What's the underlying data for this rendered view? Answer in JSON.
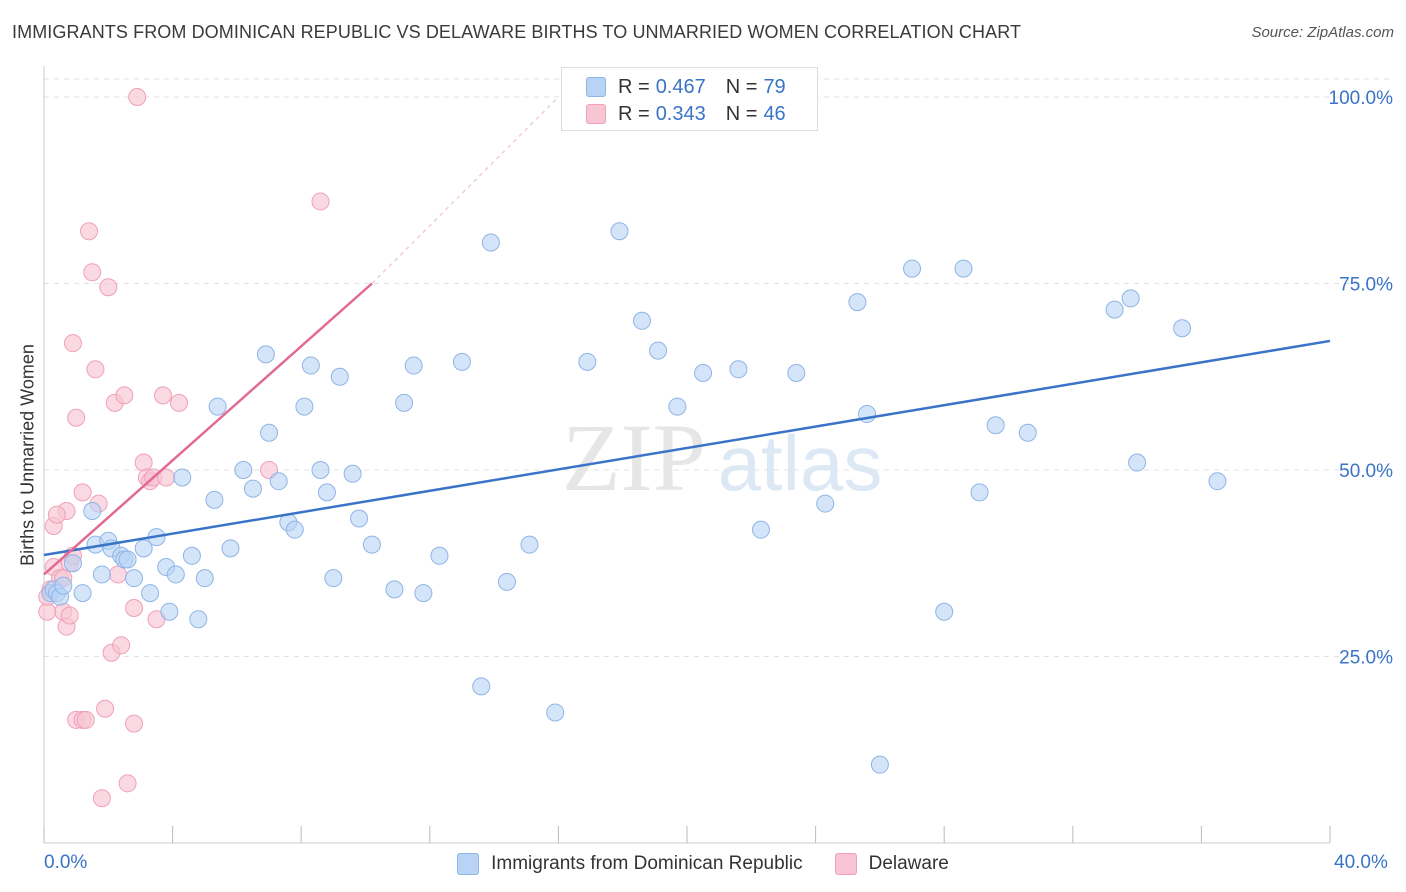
{
  "title": "IMMIGRANTS FROM DOMINICAN REPUBLIC VS DELAWARE BIRTHS TO UNMARRIED WOMEN CORRELATION CHART",
  "source": "Source: ZipAtlas.com",
  "watermark": {
    "zip": "ZIP",
    "atlas": "atlas"
  },
  "legend": {
    "series1": {
      "r_label": "R = ",
      "r_value": "0.467",
      "n_label": "N = ",
      "n_value": "79"
    },
    "series2": {
      "r_label": "R = ",
      "r_value": "0.343",
      "n_label": "N = ",
      "n_value": "46"
    }
  },
  "bottom_legend": {
    "series1": "Immigrants from Dominican Republic",
    "series2": "Delaware"
  },
  "colors": {
    "blue_fill": "#b9d3f5",
    "blue_stroke": "#8fb4e6",
    "blue_line": "#3a74c7",
    "pink_fill": "#f8c5d4",
    "pink_stroke": "#f0a0b8",
    "pink_line": "#e26a92",
    "axis_text": "#3a74c7",
    "grid": "#e2e2e2"
  },
  "chart_data": {
    "type": "scatter",
    "title": "IMMIGRANTS FROM DOMINICAN REPUBLIC VS DELAWARE BIRTHS TO UNMARRIED WOMEN CORRELATION CHART",
    "xlabel": "",
    "ylabel": "Births to Unmarried Women",
    "xlim": [
      0,
      40
    ],
    "ylim": [
      0,
      105
    ],
    "x_tick_labels": {
      "min": "0.0%",
      "max": "40.0%"
    },
    "y_ticks": [
      25,
      50,
      75,
      100
    ],
    "y_tick_labels": [
      "25.0%",
      "50.0%",
      "75.0%",
      "100.0%"
    ],
    "series": [
      {
        "name": "Immigrants from Dominican Republic",
        "color": "blue",
        "trendline": {
          "x": [
            0,
            40
          ],
          "y": [
            38.6,
            67.3
          ]
        },
        "points": [
          [
            0.2,
            33.5
          ],
          [
            0.3,
            34.0
          ],
          [
            0.4,
            33.5
          ],
          [
            0.5,
            33.0
          ],
          [
            0.6,
            34.5
          ],
          [
            0.9,
            37.5
          ],
          [
            1.2,
            33.5
          ],
          [
            1.5,
            44.5
          ],
          [
            1.6,
            40.0
          ],
          [
            1.8,
            36.0
          ],
          [
            2.0,
            40.5
          ],
          [
            2.1,
            39.5
          ],
          [
            2.4,
            38.5
          ],
          [
            2.5,
            38.0
          ],
          [
            2.6,
            38.0
          ],
          [
            2.8,
            35.5
          ],
          [
            3.1,
            39.5
          ],
          [
            3.3,
            33.5
          ],
          [
            3.5,
            41.0
          ],
          [
            3.8,
            37.0
          ],
          [
            3.9,
            31.0
          ],
          [
            4.1,
            36.0
          ],
          [
            4.3,
            49.0
          ],
          [
            4.6,
            38.5
          ],
          [
            4.8,
            30.0
          ],
          [
            5.0,
            35.5
          ],
          [
            5.3,
            46.0
          ],
          [
            5.4,
            58.5
          ],
          [
            5.8,
            39.5
          ],
          [
            6.2,
            50.0
          ],
          [
            6.5,
            47.5
          ],
          [
            7.0,
            55.0
          ],
          [
            6.9,
            65.5
          ],
          [
            7.3,
            48.5
          ],
          [
            7.6,
            43.0
          ],
          [
            7.8,
            42.0
          ],
          [
            8.1,
            58.5
          ],
          [
            8.3,
            64.0
          ],
          [
            8.6,
            50.0
          ],
          [
            8.8,
            47.0
          ],
          [
            9.0,
            35.5
          ],
          [
            9.2,
            62.5
          ],
          [
            9.6,
            49.5
          ],
          [
            9.8,
            43.5
          ],
          [
            10.2,
            40.0
          ],
          [
            10.9,
            34.0
          ],
          [
            11.2,
            59.0
          ],
          [
            11.5,
            64.0
          ],
          [
            11.8,
            33.5
          ],
          [
            12.3,
            38.5
          ],
          [
            13.0,
            64.5
          ],
          [
            13.6,
            21.0
          ],
          [
            13.9,
            80.5
          ],
          [
            14.4,
            35.0
          ],
          [
            15.1,
            40.0
          ],
          [
            15.9,
            17.5
          ],
          [
            16.9,
            64.5
          ],
          [
            17.9,
            82.0
          ],
          [
            18.6,
            70.0
          ],
          [
            19.1,
            66.0
          ],
          [
            19.7,
            58.5
          ],
          [
            20.5,
            63.0
          ],
          [
            21.6,
            63.5
          ],
          [
            22.3,
            42.0
          ],
          [
            23.4,
            63.0
          ],
          [
            24.3,
            45.5
          ],
          [
            25.3,
            72.5
          ],
          [
            25.6,
            57.5
          ],
          [
            26.0,
            10.5
          ],
          [
            27.0,
            77.0
          ],
          [
            28.0,
            31.0
          ],
          [
            28.6,
            77.0
          ],
          [
            29.1,
            47.0
          ],
          [
            29.6,
            56.0
          ],
          [
            30.6,
            55.0
          ],
          [
            33.3,
            71.5
          ],
          [
            33.8,
            73.0
          ],
          [
            34.0,
            51.0
          ],
          [
            35.4,
            69.0
          ],
          [
            36.5,
            48.5
          ]
        ]
      },
      {
        "name": "Delaware",
        "color": "pink",
        "trendline": {
          "x": [
            0,
            10.2
          ],
          "y": [
            36.0,
            75.0
          ]
        },
        "trendline_dashed_extension": {
          "x": [
            10.2,
            16.0
          ],
          "y": [
            75.0,
            100.0
          ]
        },
        "points": [
          [
            0.1,
            31.0
          ],
          [
            0.1,
            33.0
          ],
          [
            0.2,
            34.0
          ],
          [
            0.3,
            37.0
          ],
          [
            0.3,
            42.5
          ],
          [
            0.5,
            35.5
          ],
          [
            0.6,
            31.0
          ],
          [
            0.7,
            29.0
          ],
          [
            0.7,
            44.5
          ],
          [
            0.8,
            37.5
          ],
          [
            0.8,
            30.5
          ],
          [
            0.9,
            38.5
          ],
          [
            0.9,
            67.0
          ],
          [
            1.0,
            57.0
          ],
          [
            1.0,
            16.5
          ],
          [
            1.2,
            16.5
          ],
          [
            1.2,
            47.0
          ],
          [
            1.3,
            16.5
          ],
          [
            1.4,
            82.0
          ],
          [
            1.5,
            76.5
          ],
          [
            1.6,
            63.5
          ],
          [
            1.7,
            45.5
          ],
          [
            1.8,
            6.0
          ],
          [
            2.0,
            74.5
          ],
          [
            2.1,
            25.5
          ],
          [
            2.2,
            59.0
          ],
          [
            2.4,
            26.5
          ],
          [
            2.5,
            60.0
          ],
          [
            2.6,
            8.0
          ],
          [
            2.8,
            16.0
          ],
          [
            2.8,
            31.5
          ],
          [
            2.9,
            100.0
          ],
          [
            3.1,
            51.0
          ],
          [
            3.2,
            49.0
          ],
          [
            3.3,
            48.5
          ],
          [
            3.4,
            49.0
          ],
          [
            3.5,
            30.0
          ],
          [
            3.7,
            60.0
          ],
          [
            3.8,
            49.0
          ],
          [
            4.2,
            59.0
          ],
          [
            7.0,
            50.0
          ],
          [
            8.6,
            86.0
          ],
          [
            1.9,
            18.0
          ],
          [
            0.4,
            44.0
          ],
          [
            2.3,
            36.0
          ],
          [
            0.6,
            35.5
          ]
        ]
      }
    ]
  }
}
